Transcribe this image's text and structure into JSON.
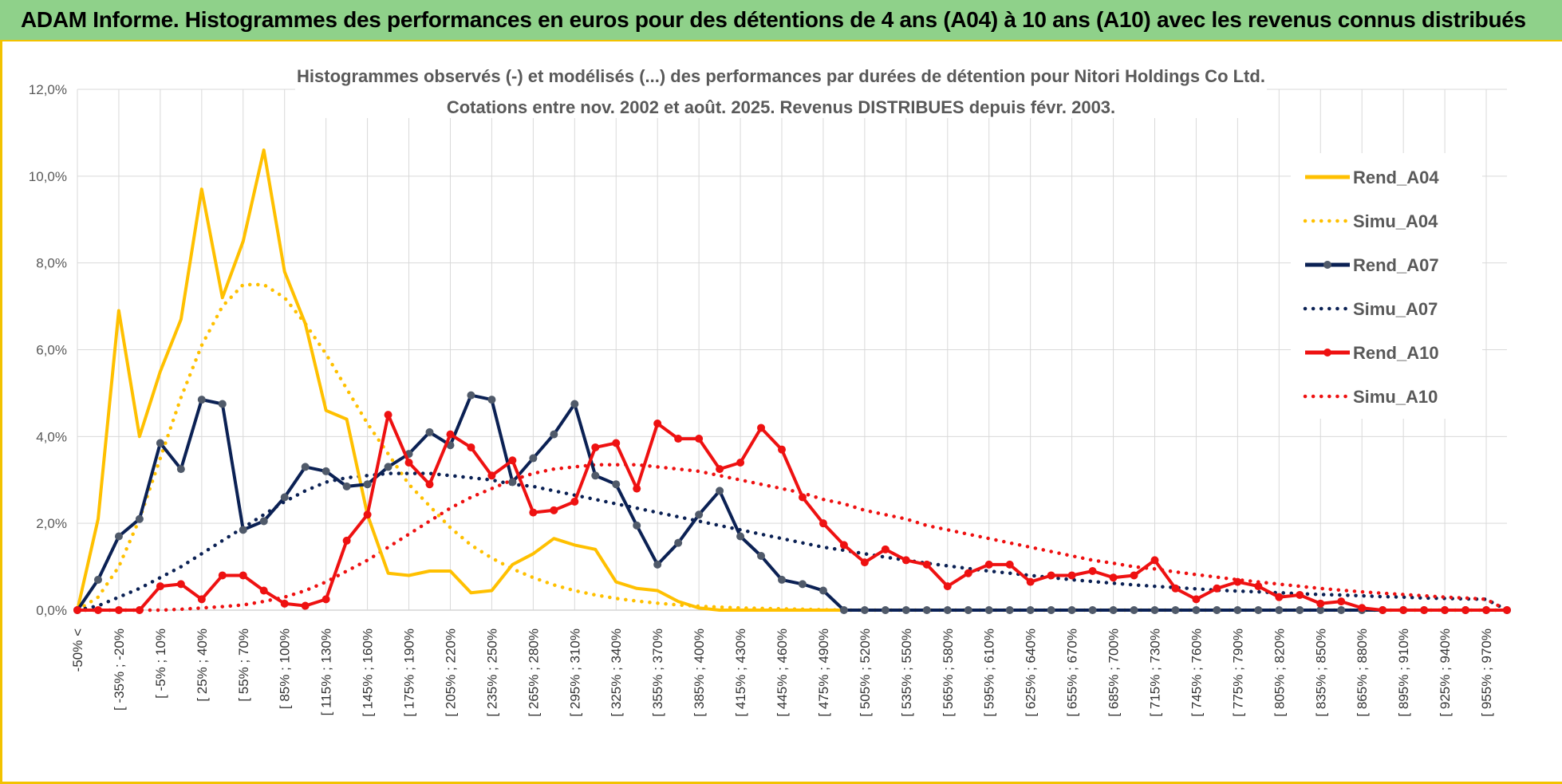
{
  "header": {
    "title": "ADAM Informe. Histogrammes des performances en euros pour des détentions de 4 ans (A04) à 10 ans (A10) avec les revenus connus distribués"
  },
  "colors": {
    "banner": "#8fd18a",
    "accent": "#f2c200",
    "a04": "#ffc000",
    "a07": "#0b2154",
    "a10": "#ee1111"
  },
  "chart_data": {
    "type": "line",
    "title_lines": [
      "Histogrammes observés (-) et modélisés (...) des performances par durées de détention pour Nitori Holdings Co Ltd.",
      "Cotations entre nov. 2002 et août. 2025. Revenus DISTRIBUES depuis févr. 2003."
    ],
    "ylim": [
      0,
      12
    ],
    "yticks": [
      "0,0%",
      "2,0%",
      "4,0%",
      "6,0%",
      "8,0%",
      "10,0%",
      "12,0%"
    ],
    "grid": true,
    "legend_position": "right",
    "x_labels": [
      "-50% <",
      "[ -35% ; -20%",
      "[ -5% ; 10%",
      "[ 25% ; 40%",
      "[ 55% ; 70%",
      "[ 85% ; 100%",
      "[ 115% ; 130%",
      "[ 145% ; 160%",
      "[ 175% ; 190%",
      "[ 205% ; 220%",
      "[ 235% ; 250%",
      "[ 265% ; 280%",
      "[ 295% ; 310%",
      "[ 325% ; 340%",
      "[ 355% ; 370%",
      "[ 385% ; 400%",
      "[ 415% ; 430%",
      "[ 445% ; 460%",
      "[ 475% ; 490%",
      "[ 505% ; 520%",
      "[ 535% ; 550%",
      "[ 565% ; 580%",
      "[ 595% ; 610%",
      "[ 625% ; 640%",
      "[ 655% ; 670%",
      "[ 685% ; 700%",
      "[ 715% ; 730%",
      "[ 745% ; 760%",
      "[ 775% ; 790%",
      "[ 805% ; 820%",
      "[ 835% ; 850%",
      "[ 865% ; 880%",
      "[ 895% ; 910%",
      "[ 925% ; 940%",
      "[ 955% ; 970%"
    ],
    "series": [
      {
        "name": "Rend_A04",
        "color": "#ffc000",
        "style": "solid",
        "markers": false,
        "values": [
          0,
          2.1,
          6.9,
          4.0,
          5.5,
          6.7,
          9.7,
          7.2,
          8.5,
          10.6,
          7.8,
          6.6,
          4.6,
          4.4,
          2.2,
          0.85,
          0.8,
          0.9,
          0.9,
          0.4,
          0.45,
          1.05,
          1.3,
          1.65,
          1.5,
          1.4,
          0.65,
          0.5,
          0.45,
          0.2,
          0.05,
          0,
          0,
          0,
          0,
          0,
          0,
          0,
          0,
          0,
          0,
          0,
          0,
          0,
          0,
          0,
          0,
          0,
          0,
          0,
          0,
          0,
          0,
          0,
          0,
          0,
          0,
          0,
          0,
          0,
          0,
          0,
          0,
          0,
          0,
          0,
          0,
          0,
          0,
          0
        ]
      },
      {
        "name": "Simu_A04",
        "color": "#ffc000",
        "style": "dotted",
        "markers": false,
        "values": [
          0,
          0.3,
          1.0,
          2.1,
          3.5,
          4.9,
          6.1,
          7.0,
          7.5,
          7.5,
          7.2,
          6.6,
          5.9,
          5.1,
          4.3,
          3.6,
          2.9,
          2.4,
          1.9,
          1.5,
          1.2,
          0.95,
          0.75,
          0.58,
          0.45,
          0.35,
          0.27,
          0.21,
          0.16,
          0.12,
          0.09,
          0.07,
          0.05,
          0.04,
          0.03,
          0.02,
          0.01,
          0,
          0,
          0,
          0,
          0,
          0,
          0,
          0,
          0,
          0,
          0,
          0,
          0,
          0,
          0,
          0,
          0,
          0,
          0,
          0,
          0,
          0,
          0,
          0,
          0,
          0,
          0,
          0,
          0,
          0,
          0,
          0,
          0
        ]
      },
      {
        "name": "Rend_A07",
        "color": "#0b2154",
        "style": "solid",
        "markers": true,
        "values": [
          0,
          0.7,
          1.7,
          2.1,
          3.85,
          3.25,
          4.85,
          4.75,
          1.85,
          2.05,
          2.6,
          3.3,
          3.2,
          2.85,
          2.9,
          3.3,
          3.6,
          4.1,
          3.8,
          4.95,
          4.85,
          2.95,
          3.5,
          4.05,
          4.75,
          3.1,
          2.9,
          1.95,
          1.05,
          1.55,
          2.2,
          2.75,
          1.7,
          1.25,
          0.7,
          0.6,
          0.45,
          0,
          0,
          0,
          0,
          0,
          0,
          0,
          0,
          0,
          0,
          0,
          0,
          0,
          0,
          0,
          0,
          0,
          0,
          0,
          0,
          0,
          0,
          0,
          0,
          0,
          0,
          0,
          0,
          0,
          0,
          0,
          0,
          0
        ]
      },
      {
        "name": "Simu_A07",
        "color": "#0b2154",
        "style": "dotted",
        "markers": false,
        "values": [
          0,
          0.1,
          0.3,
          0.5,
          0.75,
          1.0,
          1.3,
          1.6,
          1.9,
          2.2,
          2.5,
          2.75,
          2.95,
          3.05,
          3.1,
          3.15,
          3.15,
          3.15,
          3.1,
          3.05,
          3.0,
          2.9,
          2.85,
          2.75,
          2.65,
          2.55,
          2.45,
          2.35,
          2.25,
          2.15,
          2.05,
          1.95,
          1.85,
          1.75,
          1.65,
          1.55,
          1.45,
          1.38,
          1.3,
          1.22,
          1.15,
          1.08,
          1.02,
          0.96,
          0.9,
          0.85,
          0.8,
          0.75,
          0.7,
          0.66,
          0.62,
          0.58,
          0.55,
          0.52,
          0.49,
          0.46,
          0.44,
          0.42,
          0.4,
          0.38,
          0.36,
          0.35,
          0.33,
          0.31,
          0.3,
          0.28,
          0.27,
          0.26,
          0.25,
          0
        ]
      },
      {
        "name": "Rend_A10",
        "color": "#ee1111",
        "style": "solid",
        "markers": true,
        "values": [
          0,
          0,
          0,
          0,
          0.55,
          0.6,
          0.25,
          0.8,
          0.8,
          0.45,
          0.15,
          0.1,
          0.25,
          1.6,
          2.2,
          4.5,
          3.4,
          2.9,
          4.05,
          3.75,
          3.1,
          3.45,
          2.25,
          2.3,
          2.5,
          3.75,
          3.85,
          2.8,
          4.3,
          3.95,
          3.95,
          3.25,
          3.4,
          4.2,
          3.7,
          2.6,
          2.0,
          1.5,
          1.1,
          1.4,
          1.15,
          1.05,
          0.55,
          0.85,
          1.05,
          1.05,
          0.65,
          0.8,
          0.8,
          0.9,
          0.75,
          0.8,
          1.15,
          0.5,
          0.25,
          0.5,
          0.65,
          0.55,
          0.3,
          0.35,
          0.15,
          0.2,
          0.05,
          0,
          0,
          0,
          0,
          0,
          0,
          0
        ]
      },
      {
        "name": "Simu_A10",
        "color": "#ee1111",
        "style": "dotted",
        "markers": false,
        "values": [
          0,
          0,
          0,
          0,
          0,
          0.02,
          0.05,
          0.08,
          0.12,
          0.2,
          0.3,
          0.45,
          0.65,
          0.9,
          1.15,
          1.45,
          1.75,
          2.05,
          2.35,
          2.6,
          2.8,
          3.0,
          3.15,
          3.25,
          3.3,
          3.35,
          3.35,
          3.35,
          3.3,
          3.25,
          3.2,
          3.1,
          3.0,
          2.9,
          2.8,
          2.7,
          2.55,
          2.45,
          2.3,
          2.2,
          2.1,
          1.95,
          1.85,
          1.75,
          1.65,
          1.55,
          1.45,
          1.35,
          1.25,
          1.15,
          1.08,
          1.0,
          0.95,
          0.88,
          0.82,
          0.76,
          0.7,
          0.65,
          0.6,
          0.55,
          0.5,
          0.46,
          0.42,
          0.39,
          0.36,
          0.33,
          0.3,
          0.28,
          0.25,
          0
        ]
      }
    ]
  }
}
